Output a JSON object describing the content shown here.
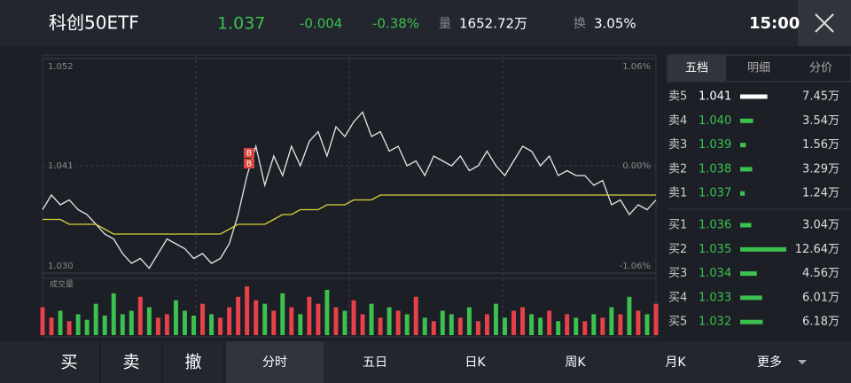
{
  "header": {
    "title": "科创50ETF",
    "price": "1.037",
    "change": "-0.004",
    "change_pct": "-0.38%",
    "volume_label": "量",
    "volume": "1652.72万",
    "turnover_label": "换",
    "turnover": "3.05%",
    "time": "15:00"
  },
  "chart_data": {
    "type": "line",
    "ylim": [
      1.03,
      1.052
    ],
    "yticks": [
      {
        "value": 1.052,
        "label": "1.052"
      },
      {
        "value": 1.041,
        "label": "1.041"
      },
      {
        "value": 1.03,
        "label": "1.030"
      }
    ],
    "y2ticks": [
      "1.06%",
      "0.00%",
      "-1.06%"
    ],
    "series": [
      {
        "name": "price",
        "color": "#e6e6e6",
        "values": [
          1.0365,
          1.038,
          1.037,
          1.0375,
          1.0365,
          1.036,
          1.035,
          1.034,
          1.0335,
          1.032,
          1.031,
          1.0315,
          1.0305,
          1.032,
          1.0335,
          1.033,
          1.0325,
          1.0315,
          1.032,
          1.031,
          1.0315,
          1.033,
          1.036,
          1.04,
          1.043,
          1.039,
          1.042,
          1.04,
          1.043,
          1.041,
          1.0435,
          1.0445,
          1.042,
          1.045,
          1.044,
          1.0455,
          1.0465,
          1.044,
          1.0445,
          1.0425,
          1.043,
          1.041,
          1.0415,
          1.04,
          1.042,
          1.0415,
          1.041,
          1.042,
          1.0405,
          1.041,
          1.0425,
          1.041,
          1.04,
          1.0415,
          1.043,
          1.0425,
          1.041,
          1.042,
          1.04,
          1.0405,
          1.04,
          1.04,
          1.039,
          1.0395,
          1.037,
          1.0375,
          1.036,
          1.037,
          1.0365,
          1.0375
        ]
      },
      {
        "name": "average",
        "color": "#d9d23a",
        "values": [
          1.0355,
          1.0355,
          1.0355,
          1.035,
          1.035,
          1.035,
          1.035,
          1.0345,
          1.034,
          1.034,
          1.034,
          1.034,
          1.034,
          1.034,
          1.034,
          1.034,
          1.034,
          1.034,
          1.034,
          1.034,
          1.034,
          1.0345,
          1.035,
          1.035,
          1.035,
          1.035,
          1.0355,
          1.036,
          1.036,
          1.0365,
          1.0365,
          1.0365,
          1.037,
          1.037,
          1.037,
          1.0375,
          1.0375,
          1.0375,
          1.038,
          1.038,
          1.038,
          1.038,
          1.038,
          1.038,
          1.038,
          1.038,
          1.038,
          1.038,
          1.038,
          1.038,
          1.038,
          1.038,
          1.038,
          1.038,
          1.038,
          1.038,
          1.038,
          1.038,
          1.038,
          1.038,
          1.038,
          1.038,
          1.038,
          1.038,
          1.038,
          1.038,
          1.038,
          1.038,
          1.038,
          1.038
        ]
      }
    ],
    "volume_label": "成交量",
    "volume": [
      40,
      25,
      35,
      20,
      30,
      22,
      45,
      28,
      60,
      30,
      35,
      55,
      40,
      25,
      30,
      50,
      35,
      28,
      45,
      30,
      25,
      40,
      55,
      70,
      50,
      45,
      35,
      60,
      40,
      30,
      55,
      45,
      65,
      40,
      35,
      50,
      30,
      45,
      25,
      40,
      35,
      30,
      55,
      25,
      20,
      35,
      30,
      25,
      40,
      20,
      30,
      45,
      25,
      35,
      40,
      30,
      25,
      35,
      20,
      30,
      25,
      20,
      30,
      25,
      40,
      30,
      55,
      35,
      30,
      45
    ],
    "annotations": [
      "B",
      "B"
    ]
  },
  "order_book": {
    "tabs": [
      "五档",
      "明细",
      "分价"
    ],
    "rows": [
      {
        "label": "卖5",
        "price": "1.041",
        "volume": 7.45,
        "volume_label": "7.45万",
        "color": "#ffffff"
      },
      {
        "label": "卖4",
        "price": "1.040",
        "volume": 3.54,
        "volume_label": "3.54万",
        "color": "#3cc04f"
      },
      {
        "label": "卖3",
        "price": "1.039",
        "volume": 1.56,
        "volume_label": "1.56万",
        "color": "#3cc04f"
      },
      {
        "label": "卖2",
        "price": "1.038",
        "volume": 3.29,
        "volume_label": "3.29万",
        "color": "#3cc04f"
      },
      {
        "label": "卖1",
        "price": "1.037",
        "volume": 1.24,
        "volume_label": "1.24万",
        "color": "#3cc04f"
      },
      {
        "label": "买1",
        "price": "1.036",
        "volume": 3.04,
        "volume_label": "3.04万",
        "color": "#3cc04f"
      },
      {
        "label": "买2",
        "price": "1.035",
        "volume": 12.64,
        "volume_label": "12.64万",
        "color": "#3cc04f"
      },
      {
        "label": "买3",
        "price": "1.034",
        "volume": 4.56,
        "volume_label": "4.56万",
        "color": "#3cc04f"
      },
      {
        "label": "买4",
        "price": "1.033",
        "volume": 6.01,
        "volume_label": "6.01万",
        "color": "#3cc04f"
      },
      {
        "label": "买5",
        "price": "1.032",
        "volume": 6.18,
        "volume_label": "6.18万",
        "color": "#3cc04f"
      }
    ]
  },
  "toolbar": {
    "actions": [
      "买",
      "卖",
      "撤"
    ],
    "tabs": [
      "分时",
      "五日",
      "日K",
      "周K",
      "月K",
      "更多"
    ]
  }
}
